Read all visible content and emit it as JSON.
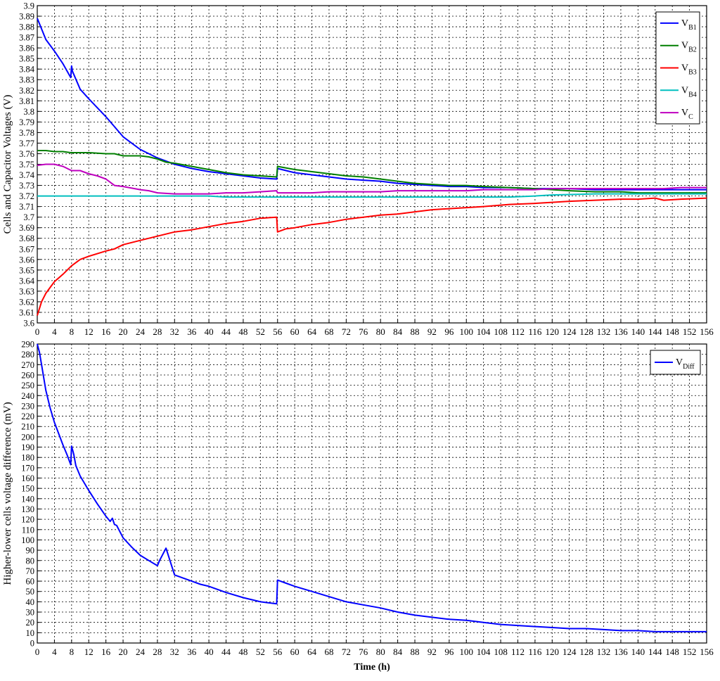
{
  "colors": {
    "VB1": "#0000ff",
    "VB2": "#007f00",
    "VB3": "#ff0000",
    "VB4": "#00bfbf",
    "VC": "#bf00bf",
    "VDiff": "#0000ff"
  },
  "chart_data": [
    {
      "type": "line",
      "title": "",
      "xlabel": "",
      "ylabel": "Cells and Capacitor Voltages (V)",
      "xlim": [
        0,
        156
      ],
      "ylim": [
        3.6,
        3.9
      ],
      "grid": true,
      "legend_position": "top-right",
      "xticks": [
        0,
        4,
        8,
        12,
        16,
        20,
        24,
        28,
        32,
        36,
        40,
        44,
        48,
        52,
        56,
        60,
        64,
        68,
        72,
        76,
        80,
        84,
        88,
        92,
        96,
        100,
        104,
        108,
        112,
        116,
        120,
        124,
        128,
        132,
        136,
        140,
        144,
        148,
        152,
        156
      ],
      "yticks": [
        "3.6",
        "3.61",
        "3.62",
        "3.63",
        "3.64",
        "3.65",
        "3.66",
        "3.67",
        "3.68",
        "3.69",
        "3.7",
        "3.71",
        "3.72",
        "3.73",
        "3.74",
        "3.75",
        "3.76",
        "3.77",
        "3.78",
        "3.79",
        "3.8",
        "3.81",
        "3.82",
        "3.83",
        "3.84",
        "3.85",
        "3.86",
        "3.87",
        "3.88",
        "3.89",
        "3.9"
      ],
      "series": [
        {
          "name": "VB1",
          "label_main": "V",
          "label_sub": "B1",
          "color_key": "VB1",
          "x": [
            0,
            2,
            4,
            6,
            7.8,
            8,
            8.2,
            10,
            12,
            16,
            20,
            24,
            28,
            32,
            36,
            40,
            44,
            48,
            52,
            55.8,
            56,
            60,
            64,
            68,
            72,
            76,
            80,
            84,
            88,
            92,
            96,
            100,
            104,
            110,
            116,
            120,
            124,
            130,
            136,
            140,
            146,
            150,
            156
          ],
          "y": [
            3.888,
            3.868,
            3.857,
            3.845,
            3.832,
            3.843,
            3.838,
            3.821,
            3.812,
            3.795,
            3.776,
            3.764,
            3.756,
            3.75,
            3.746,
            3.743,
            3.741,
            3.739,
            3.737,
            3.736,
            3.746,
            3.742,
            3.74,
            3.738,
            3.736,
            3.735,
            3.734,
            3.732,
            3.731,
            3.73,
            3.729,
            3.729,
            3.728,
            3.728,
            3.727,
            3.727,
            3.727,
            3.726,
            3.726,
            3.726,
            3.726,
            3.726,
            3.726
          ]
        },
        {
          "name": "VB2",
          "label_main": "V",
          "label_sub": "B2",
          "color_key": "VB2",
          "x": [
            0,
            2,
            4,
            6,
            7.8,
            8,
            10,
            12,
            16,
            18,
            20,
            24,
            26,
            28,
            30,
            32,
            36,
            40,
            44,
            48,
            52,
            55.8,
            56,
            60,
            64,
            68,
            72,
            76,
            80,
            84,
            88,
            92,
            96,
            100,
            104,
            110,
            116,
            120,
            124,
            130,
            136,
            140,
            146,
            150,
            156
          ],
          "y": [
            3.763,
            3.763,
            3.762,
            3.762,
            3.761,
            3.761,
            3.761,
            3.761,
            3.76,
            3.76,
            3.758,
            3.758,
            3.757,
            3.755,
            3.752,
            3.751,
            3.748,
            3.745,
            3.742,
            3.74,
            3.739,
            3.738,
            3.748,
            3.745,
            3.743,
            3.741,
            3.739,
            3.738,
            3.736,
            3.734,
            3.732,
            3.731,
            3.73,
            3.73,
            3.729,
            3.728,
            3.727,
            3.726,
            3.725,
            3.724,
            3.724,
            3.723,
            3.723,
            3.723,
            3.723
          ]
        },
        {
          "name": "VB3",
          "label_main": "V",
          "label_sub": "B3",
          "color_key": "VB3",
          "x": [
            0,
            1,
            2,
            4,
            6,
            8,
            10,
            12,
            16,
            18,
            20,
            24,
            28,
            30,
            32,
            36,
            40,
            44,
            48,
            52,
            55.8,
            56,
            58,
            60,
            64,
            68,
            72,
            76,
            80,
            84,
            88,
            92,
            96,
            100,
            104,
            110,
            116,
            120,
            124,
            130,
            136,
            140,
            144,
            146,
            150,
            156
          ],
          "y": [
            3.607,
            3.62,
            3.628,
            3.639,
            3.646,
            3.654,
            3.66,
            3.663,
            3.668,
            3.67,
            3.674,
            3.678,
            3.682,
            3.684,
            3.686,
            3.688,
            3.691,
            3.694,
            3.696,
            3.699,
            3.7,
            3.686,
            3.689,
            3.69,
            3.693,
            3.695,
            3.698,
            3.7,
            3.702,
            3.703,
            3.705,
            3.707,
            3.708,
            3.709,
            3.71,
            3.712,
            3.713,
            3.714,
            3.715,
            3.716,
            3.717,
            3.717,
            3.718,
            3.716,
            3.717,
            3.718
          ]
        },
        {
          "name": "VB4",
          "label_main": "V",
          "label_sub": "B4",
          "color_key": "VB4",
          "x": [
            0,
            20,
            28,
            40,
            44,
            56,
            68,
            80,
            90,
            100,
            110,
            116,
            120,
            130,
            140,
            150,
            156
          ],
          "y": [
            3.72,
            3.72,
            3.72,
            3.72,
            3.719,
            3.719,
            3.719,
            3.719,
            3.719,
            3.719,
            3.719,
            3.72,
            3.721,
            3.722,
            3.722,
            3.722,
            3.722
          ]
        },
        {
          "name": "VC",
          "label_main": "V",
          "label_sub": "C",
          "color_key": "VC",
          "x": [
            0,
            2,
            4,
            6,
            8,
            10,
            12,
            14,
            16,
            18,
            20,
            24,
            26,
            28,
            32,
            36,
            40,
            44,
            48,
            52,
            55.8,
            56,
            60,
            64,
            68,
            72,
            76,
            80,
            84,
            88,
            92,
            96,
            100,
            104,
            110,
            116,
            120,
            124,
            130,
            136,
            140,
            146,
            150,
            156
          ],
          "y": [
            3.749,
            3.75,
            3.75,
            3.748,
            3.744,
            3.744,
            3.741,
            3.739,
            3.736,
            3.73,
            3.729,
            3.726,
            3.725,
            3.723,
            3.722,
            3.722,
            3.722,
            3.723,
            3.723,
            3.724,
            3.725,
            3.723,
            3.723,
            3.723,
            3.724,
            3.724,
            3.724,
            3.724,
            3.725,
            3.725,
            3.725,
            3.725,
            3.725,
            3.726,
            3.726,
            3.726,
            3.727,
            3.727,
            3.727,
            3.727,
            3.727,
            3.727,
            3.728,
            3.728
          ]
        }
      ]
    },
    {
      "type": "line",
      "title": "",
      "xlabel": "Time (h)",
      "ylabel": "Higher-lower cells voltage difference (mV)",
      "xlim": [
        0,
        156
      ],
      "ylim": [
        0,
        290
      ],
      "grid": true,
      "legend_position": "top-right",
      "xticks": [
        0,
        4,
        8,
        12,
        16,
        20,
        24,
        28,
        32,
        36,
        40,
        44,
        48,
        52,
        56,
        60,
        64,
        68,
        72,
        76,
        80,
        84,
        88,
        92,
        96,
        100,
        104,
        108,
        112,
        116,
        120,
        124,
        128,
        132,
        136,
        140,
        144,
        148,
        152,
        156
      ],
      "yticks": [
        "0",
        "10",
        "20",
        "30",
        "40",
        "50",
        "60",
        "70",
        "80",
        "90",
        "100",
        "110",
        "120",
        "130",
        "140",
        "150",
        "160",
        "170",
        "180",
        "190",
        "200",
        "210",
        "220",
        "230",
        "240",
        "250",
        "260",
        "270",
        "280",
        "290"
      ],
      "series": [
        {
          "name": "VDiff",
          "label_main": "V",
          "label_sub": "Diff",
          "color_key": "VDiff",
          "x": [
            0,
            0.5,
            1,
            2,
            3,
            4,
            5,
            6,
            7,
            7.8,
            8,
            8.5,
            9,
            10,
            12,
            14,
            16,
            17,
            17.5,
            18,
            18.5,
            20,
            22,
            24,
            26,
            28,
            28.5,
            30,
            32,
            34,
            36,
            38,
            40,
            44,
            48,
            52,
            55.8,
            56,
            58,
            60,
            64,
            68,
            72,
            76,
            80,
            84,
            88,
            92,
            96,
            100,
            104,
            108,
            112,
            116,
            120,
            124,
            128,
            132,
            136,
            140,
            144,
            148,
            152,
            156
          ],
          "y": [
            290,
            282,
            270,
            245,
            228,
            214,
            203,
            192,
            182,
            173,
            191,
            183,
            172,
            162,
            148,
            135,
            123,
            118,
            121,
            115,
            114,
            102,
            93,
            85,
            80,
            75,
            80,
            92,
            66,
            63,
            60,
            57,
            55,
            49,
            44,
            40,
            38,
            61,
            58,
            55,
            50,
            45,
            40,
            37,
            34,
            30,
            27,
            25,
            23,
            22,
            20,
            18,
            17,
            16,
            15,
            14,
            14,
            13,
            12,
            12,
            11,
            11,
            11,
            11
          ]
        }
      ]
    }
  ]
}
